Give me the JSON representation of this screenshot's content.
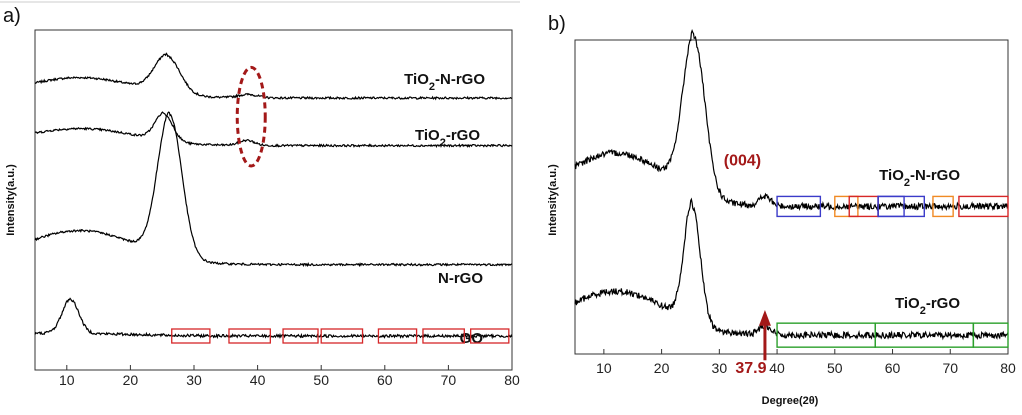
{
  "chart_data": [
    {
      "type": "line",
      "panel": "a)",
      "xlabel": "",
      "ylabel": "Intensity(a.u.)",
      "xlim": [
        5,
        80
      ],
      "ylim": [
        0,
        1
      ],
      "xticks": [
        10,
        20,
        30,
        40,
        50,
        60,
        70,
        80
      ],
      "grid": false,
      "series": [
        {
          "name": "TiO2-N-rGO",
          "label": "TiO",
          "sub": "2",
          "suffix": "-N-rGO",
          "color": "#000000",
          "baseline": 0.8,
          "peaks": [
            [
              25.8,
              0.11,
              2.0
            ],
            [
              38.5,
              0.01,
              1.5
            ]
          ],
          "shoulder": 0.06,
          "noise": 0.003
        },
        {
          "name": "TiO2-rGO",
          "label": "TiO",
          "sub": "2",
          "suffix": "-rGO",
          "color": "#000000",
          "baseline": 0.66,
          "peaks": [
            [
              25.3,
              0.08,
              1.4
            ],
            [
              38.3,
              0.015,
              1.2
            ]
          ],
          "shoulder": 0.05,
          "noise": 0.003
        },
        {
          "name": "N-rGO",
          "label": "N-rGO",
          "sub": "",
          "suffix": "",
          "color": "#000000",
          "baseline": 0.31,
          "peaks": [
            [
              26.2,
              0.42,
              1.9
            ]
          ],
          "shoulder": 0.1,
          "noise": 0.003
        },
        {
          "name": "GO",
          "label": "GO",
          "sub": "",
          "suffix": "",
          "color": "#000000",
          "baseline": 0.1,
          "peaks": [
            [
              10.6,
              0.1,
              1.3
            ]
          ],
          "shoulder": 0.01,
          "noise": 0.004
        }
      ],
      "annotations": {
        "ellipse_center_x": 39,
        "ellipse_y_range": [
          0.6,
          0.89
        ],
        "boxes_on": "GO",
        "boxes_x": [
          [
            26.5,
            32.5
          ],
          [
            35.5,
            42
          ],
          [
            44,
            49.5
          ],
          [
            50,
            56.5
          ],
          [
            59,
            65
          ],
          [
            66,
            72.5
          ],
          [
            73.5,
            79.5
          ]
        ]
      }
    },
    {
      "type": "line",
      "panel": "b)",
      "xlabel": "Degree(2θ)",
      "ylabel": "Intensity(a.u.)",
      "xlim": [
        5,
        80
      ],
      "ylim": [
        0,
        1
      ],
      "xticks": [
        10,
        20,
        30,
        40,
        50,
        60,
        70,
        80
      ],
      "grid": false,
      "series": [
        {
          "name": "TiO2-N-rGO",
          "label": "TiO",
          "sub": "2",
          "suffix": "-N-rGO",
          "color": "#000000",
          "baseline": 0.47,
          "peaks": [
            [
              25.6,
              0.5,
              1.9
            ],
            [
              37.9,
              0.03,
              1.0
            ]
          ],
          "shoulder": 0.17,
          "noise": 0.01
        },
        {
          "name": "TiO2-rGO",
          "label": "TiO",
          "sub": "2",
          "suffix": "-rGO",
          "color": "#000000",
          "baseline": 0.06,
          "peaks": [
            [
              25.3,
              0.38,
              1.4
            ],
            [
              37.9,
              0.03,
              1.0
            ]
          ],
          "shoulder": 0.14,
          "noise": 0.01
        }
      ],
      "annotations": {
        "peak_label": "(004)",
        "peak_label_x": 34,
        "arrow_label": "37.9",
        "arrow_x": 37.9,
        "boxes_top": [
          {
            "x": [
              40,
              47.5
            ],
            "color": "#3b3bc9"
          },
          {
            "x": [
              50,
              54
            ],
            "color": "#f08a24"
          },
          {
            "x": [
              52.5,
              57.5
            ],
            "color": "#d62728"
          },
          {
            "x": [
              57.5,
              62
            ],
            "color": "#3b3bc9"
          },
          {
            "x": [
              57.5,
              65.5
            ],
            "color": "#3b3bc9"
          },
          {
            "x": [
              67,
              70.5
            ],
            "color": "#f08a24"
          },
          {
            "x": [
              71.5,
              80
            ],
            "color": "#d62728"
          }
        ],
        "boxes_bottom": [
          {
            "x": [
              40,
              57
            ],
            "color": "#2ca02c"
          },
          {
            "x": [
              57,
              74
            ],
            "color": "#2ca02c"
          },
          {
            "x": [
              74,
              80
            ],
            "color": "#2ca02c"
          }
        ]
      }
    }
  ]
}
